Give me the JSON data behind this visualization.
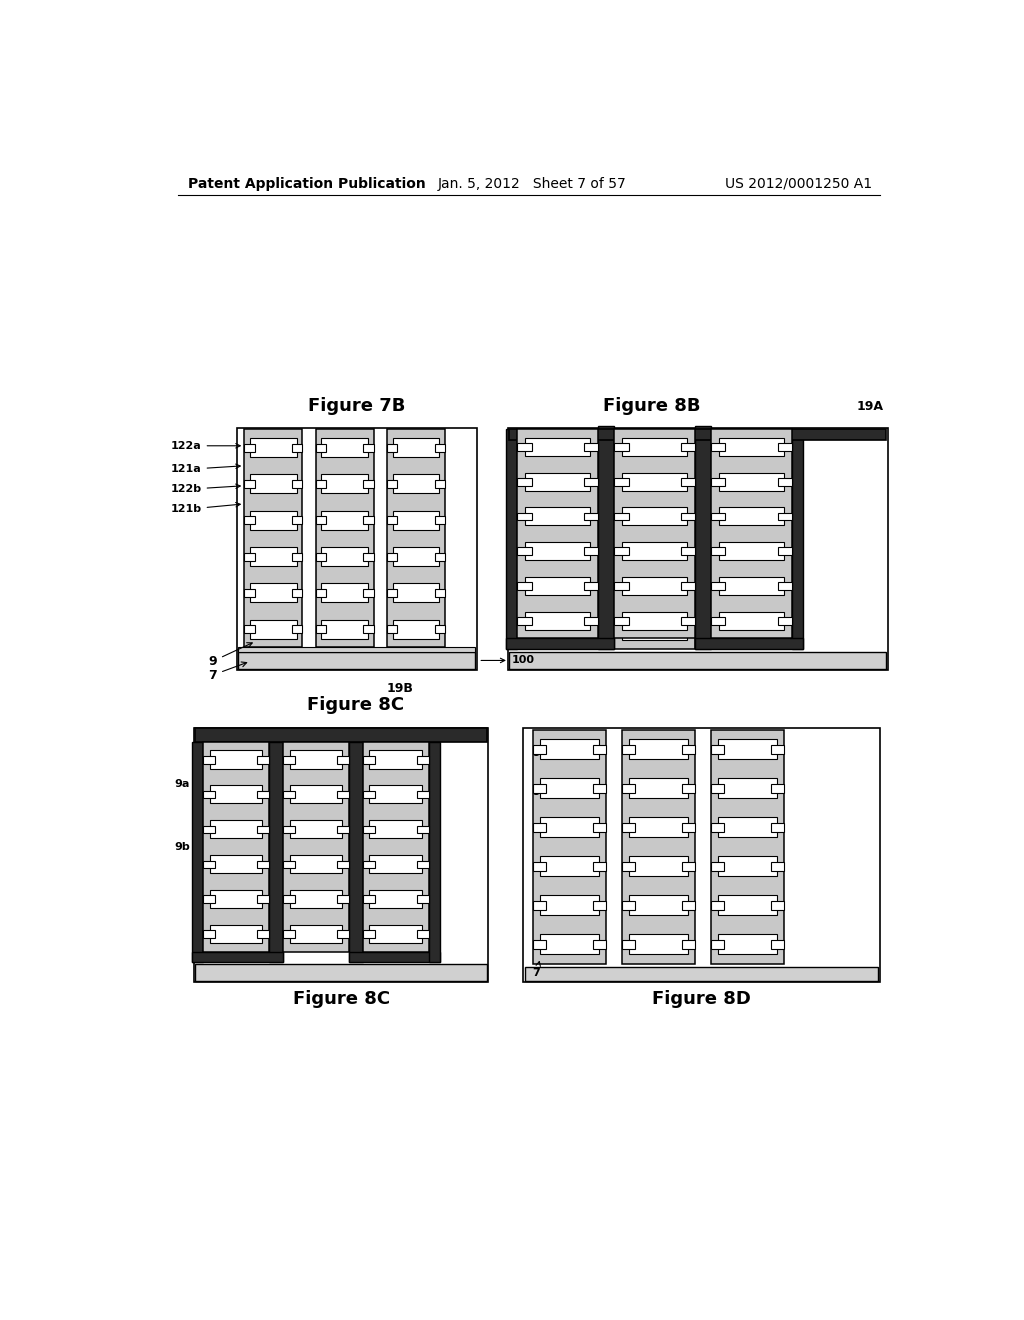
{
  "header_left": "Patent Application Publication",
  "header_mid": "Jan. 5, 2012   Sheet 7 of 57",
  "header_right": "US 2012/0001250 A1",
  "fig7b_title": "Figure 7B",
  "fig8b_title": "Figure 8B",
  "fig8c_title": "Figure 8C",
  "fig8d_title": "Figure 8D",
  "label_19A": "19A",
  "label_19B": "19B",
  "label_100": "100",
  "bg_color": "#ffffff",
  "lc": "#000000",
  "dark_col": "#3a3a3a",
  "col_gray": "#b8b8b8",
  "cell_white": "#ffffff",
  "header_fs": 10,
  "title_fs": 13,
  "label_fs": 8,
  "note_fs": 9
}
